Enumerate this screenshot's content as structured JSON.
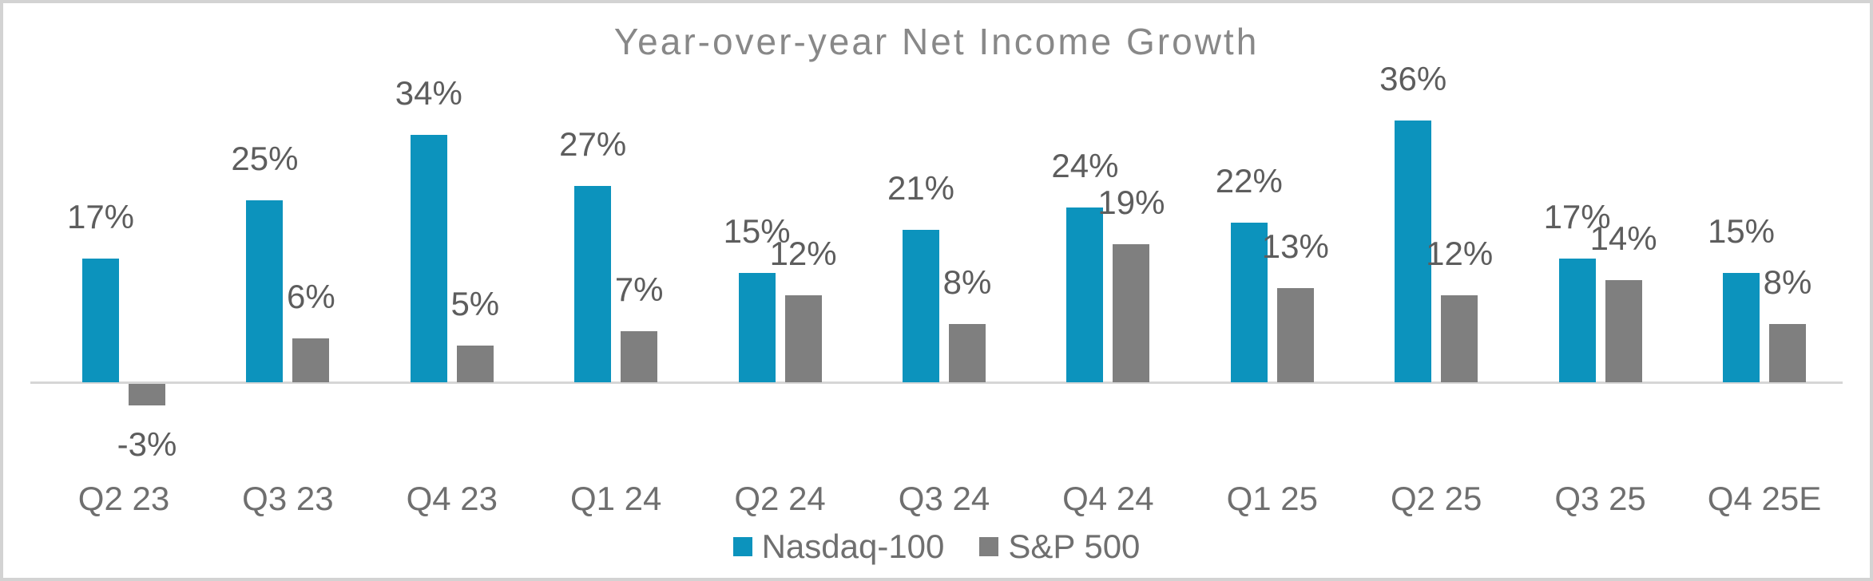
{
  "chart_data": {
    "type": "bar",
    "title": "Year-over-year Net Income Growth",
    "categories": [
      "Q2 23",
      "Q3 23",
      "Q4 23",
      "Q1 24",
      "Q2 24",
      "Q3 24",
      "Q4 24",
      "Q1 25",
      "Q2 25",
      "Q3 25",
      "Q4 25E"
    ],
    "series": [
      {
        "name": "Nasdaq-100",
        "color": "#0c93bd",
        "values": [
          17,
          25,
          34,
          27,
          15,
          21,
          24,
          22,
          36,
          17,
          15
        ]
      },
      {
        "name": "S&P 500",
        "color": "#7f7f7f",
        "values": [
          -3,
          6,
          5,
          7,
          12,
          8,
          19,
          13,
          12,
          14,
          8
        ]
      }
    ],
    "value_label_format": "{value}%",
    "ylabel": "",
    "xlabel": "",
    "ylim": [
      -5,
      40
    ],
    "grid": false,
    "legend_position": "bottom-center",
    "axis_line_color": "#d6d6d6",
    "label_color": "#5d5d5d",
    "axis_text_color": "#6f6f6f",
    "title_color": "#888888"
  }
}
